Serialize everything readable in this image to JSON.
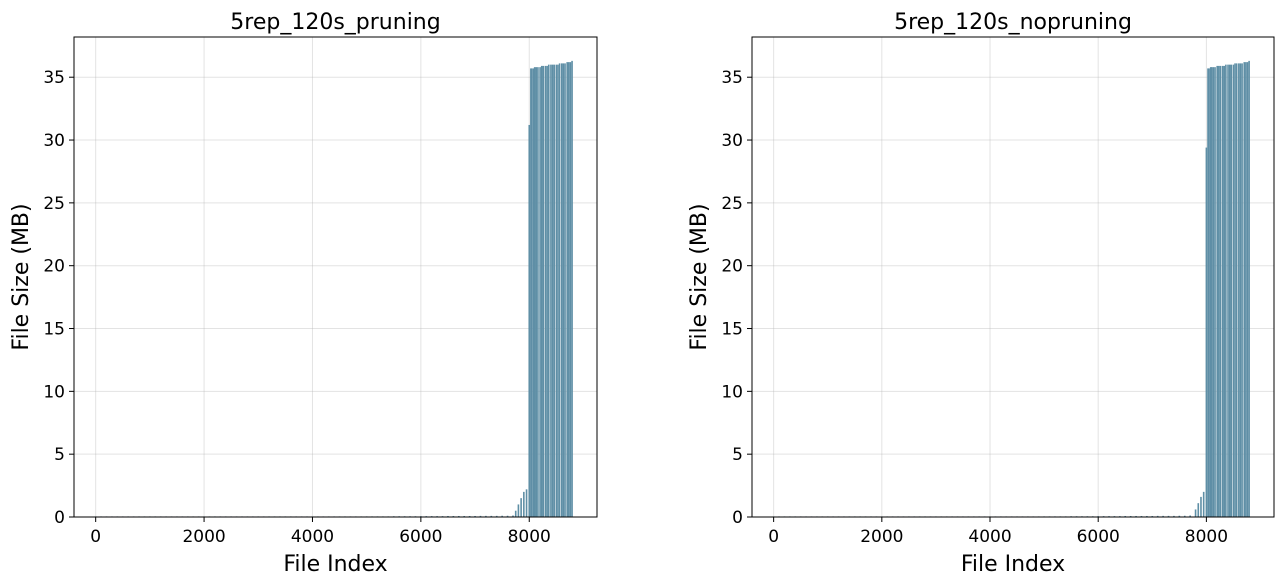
{
  "colors": {
    "bar": "#5f8fa6",
    "grid": "#b0b0b0",
    "axis": "#000000"
  },
  "chart_data": [
    {
      "type": "bar",
      "title": "5rep_120s_pruning",
      "xlabel": "File Index",
      "ylabel": "File Size (MB)",
      "xlim": [
        -400,
        9250
      ],
      "ylim": [
        0,
        38.2
      ],
      "xticks": [
        0,
        2000,
        4000,
        6000,
        8000
      ],
      "yticks": [
        0,
        5,
        10,
        15,
        20,
        25,
        30,
        35
      ],
      "grid": true,
      "bar_width": 12,
      "series": [
        {
          "x": [
            0,
            100,
            200,
            300,
            400,
            500,
            600,
            700,
            800,
            900,
            1000,
            1100,
            1200,
            1300,
            1400,
            1500,
            1600,
            1700,
            1800,
            1900,
            2000,
            2100,
            2200,
            2300,
            2400,
            2500,
            2600,
            2700,
            2800,
            2900,
            3000,
            3100,
            3200,
            3300,
            3400,
            3500,
            3600,
            3700,
            3800,
            3900,
            4000,
            4100,
            4200,
            4300,
            4400,
            4500,
            4600,
            4700,
            4800,
            4900,
            5000,
            5100,
            5200,
            5300,
            5400,
            5500,
            5600,
            5700,
            5800,
            5900,
            6000,
            6100,
            6200,
            6300,
            6400,
            6500,
            6600,
            6700,
            6800,
            6900,
            7000,
            7100,
            7200,
            7300,
            7400,
            7500,
            7600,
            7700,
            7750,
            7800,
            7850,
            7900,
            7950,
            8000,
            8030,
            8050,
            8080,
            8100,
            8130,
            8160,
            8200,
            8230,
            8260,
            8300,
            8330,
            8360,
            8400,
            8430,
            8460,
            8500,
            8530,
            8560,
            8600,
            8630,
            8660,
            8700,
            8730,
            8760,
            8790
          ],
          "values": [
            0.01,
            0.01,
            0.01,
            0.01,
            0.01,
            0.01,
            0.01,
            0.01,
            0.01,
            0.01,
            0.01,
            0.01,
            0.01,
            0.01,
            0.01,
            0.01,
            0.01,
            0.01,
            0.01,
            0.01,
            0.01,
            0.01,
            0.01,
            0.01,
            0.01,
            0.01,
            0.01,
            0.01,
            0.01,
            0.01,
            0.01,
            0.01,
            0.01,
            0.01,
            0.01,
            0.01,
            0.01,
            0.01,
            0.01,
            0.01,
            0.01,
            0.01,
            0.01,
            0.01,
            0.01,
            0.01,
            0.01,
            0.01,
            0.01,
            0.01,
            0.05,
            0.05,
            0.05,
            0.05,
            0.05,
            0.06,
            0.06,
            0.06,
            0.06,
            0.06,
            0.07,
            0.07,
            0.07,
            0.07,
            0.07,
            0.08,
            0.08,
            0.08,
            0.08,
            0.08,
            0.08,
            0.09,
            0.09,
            0.09,
            0.09,
            0.1,
            0.1,
            0.12,
            0.5,
            1.0,
            1.5,
            2.0,
            2.2,
            31.2,
            35.7,
            35.7,
            35.7,
            35.8,
            35.8,
            35.8,
            35.8,
            35.9,
            35.9,
            35.9,
            35.9,
            36.0,
            36.0,
            36.0,
            36.0,
            36.0,
            36.0,
            36.1,
            36.1,
            36.1,
            36.1,
            36.2,
            36.2,
            36.2,
            36.3
          ]
        }
      ]
    },
    {
      "type": "bar",
      "title": "5rep_120s_nopruning",
      "xlabel": "File Index",
      "ylabel": "File Size (MB)",
      "xlim": [
        -400,
        9250
      ],
      "ylim": [
        0,
        38.2
      ],
      "xticks": [
        0,
        2000,
        4000,
        6000,
        8000
      ],
      "yticks": [
        0,
        5,
        10,
        15,
        20,
        25,
        30,
        35
      ],
      "grid": true,
      "bar_width": 12,
      "series": [
        {
          "x": [
            0,
            100,
            200,
            300,
            400,
            500,
            600,
            700,
            800,
            900,
            1000,
            1100,
            1200,
            1300,
            1400,
            1500,
            1600,
            1700,
            1800,
            1900,
            2000,
            2100,
            2200,
            2300,
            2400,
            2500,
            2600,
            2700,
            2800,
            2900,
            3000,
            3100,
            3200,
            3300,
            3400,
            3500,
            3600,
            3700,
            3800,
            3900,
            4000,
            4100,
            4200,
            4300,
            4400,
            4500,
            4600,
            4700,
            4800,
            4900,
            5000,
            5100,
            5200,
            5300,
            5400,
            5500,
            5600,
            5700,
            5800,
            5900,
            6000,
            6100,
            6200,
            6300,
            6400,
            6500,
            6600,
            6700,
            6800,
            6900,
            7000,
            7100,
            7200,
            7300,
            7400,
            7500,
            7600,
            7700,
            7800,
            7850,
            7900,
            7950,
            8000,
            8030,
            8050,
            8080,
            8100,
            8130,
            8160,
            8200,
            8230,
            8260,
            8300,
            8330,
            8360,
            8400,
            8430,
            8460,
            8500,
            8530,
            8560,
            8600,
            8630,
            8660,
            8700,
            8730,
            8760,
            8790
          ],
          "values": [
            0.01,
            0.01,
            0.01,
            0.01,
            0.01,
            0.01,
            0.01,
            0.01,
            0.01,
            0.01,
            0.01,
            0.01,
            0.01,
            0.01,
            0.01,
            0.01,
            0.01,
            0.01,
            0.01,
            0.01,
            0.01,
            0.01,
            0.01,
            0.01,
            0.01,
            0.01,
            0.01,
            0.01,
            0.01,
            0.01,
            0.01,
            0.01,
            0.01,
            0.01,
            0.01,
            0.01,
            0.01,
            0.01,
            0.01,
            0.01,
            0.01,
            0.01,
            0.01,
            0.01,
            0.01,
            0.01,
            0.01,
            0.01,
            0.01,
            0.01,
            0.05,
            0.05,
            0.05,
            0.05,
            0.05,
            0.06,
            0.06,
            0.06,
            0.06,
            0.06,
            0.07,
            0.07,
            0.07,
            0.07,
            0.07,
            0.08,
            0.08,
            0.08,
            0.08,
            0.08,
            0.08,
            0.09,
            0.09,
            0.09,
            0.09,
            0.1,
            0.1,
            0.12,
            0.6,
            1.1,
            1.6,
            2.0,
            29.4,
            35.7,
            35.7,
            35.8,
            35.8,
            35.8,
            35.8,
            35.9,
            35.9,
            35.9,
            35.9,
            35.9,
            36.0,
            36.0,
            36.0,
            36.0,
            36.0,
            36.1,
            36.1,
            36.1,
            36.1,
            36.1,
            36.2,
            36.2,
            36.2,
            36.3
          ]
        }
      ]
    }
  ]
}
